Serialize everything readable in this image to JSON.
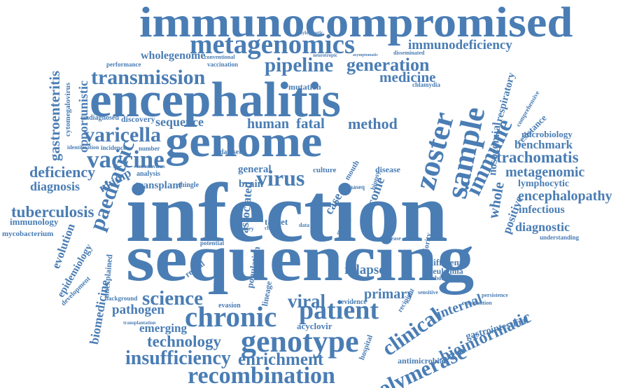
{
  "theme": {
    "word_color": "#4a7db4",
    "background": "#ffffff"
  },
  "words": [
    "immunocompromised",
    "metagenomics",
    "immunodeficiency",
    "wholegenome",
    "conventional",
    "performance",
    "vaccination",
    "neurotropic",
    "asymptomatic",
    "disseminated",
    "phylogenetic",
    "pipeline",
    "generation",
    "transmission",
    "medicine",
    "encephalitis",
    "mutation",
    "chlamydia",
    "gastroenteritis",
    "cytomegalovirus",
    "opportunistic",
    "undiagnosed",
    "discovery",
    "sequence",
    "human",
    "fatal",
    "method",
    "genome",
    "sample",
    "zoster",
    "varicella",
    "vaccine",
    "identification",
    "incidence",
    "number",
    "nosocomial",
    "respiratory",
    "comprehensive",
    "resistance",
    "immune",
    "microbiology",
    "benchmark",
    "trachomatis",
    "deficiency",
    "coronavirus",
    "analysis",
    "dataset",
    "general",
    "culture",
    "disease",
    "virus",
    "brain",
    "mouth",
    "biopsy",
    "rnaseq",
    "metagenomic",
    "lymphocytic",
    "diagnosis",
    "mump",
    "transplant",
    "shingle",
    "encephalopathy",
    "tuberculosis",
    "infectious",
    "immunology",
    "infection",
    "mycobacterium",
    "paediatric",
    "evolution",
    "whole",
    "positive",
    "diagnostic",
    "associated",
    "target",
    "outcome",
    "case",
    "meable",
    "sydney",
    "chain",
    "data",
    "stem",
    "potential",
    "understanding",
    "sequencing",
    "epidemiology",
    "unexplained",
    "reveal",
    "population",
    "relapse",
    "different",
    "leukemia",
    "laboratories",
    "primary",
    "science",
    "background",
    "pathogen",
    "viral",
    "patient",
    "chronic",
    "clinical",
    "internal",
    "emerging",
    "acyclovir",
    "evidence",
    "recipient",
    "bioinformatic",
    "gastrointestinal",
    "technology",
    "genotype",
    "hospital",
    "polymerase",
    "insufficiency",
    "enrichment",
    "biomedicine",
    "recombination",
    "antimicrobial",
    "development",
    "transplantation",
    "sensitive",
    "combination",
    "lineage",
    "evasion",
    "persistence",
    "increase",
    "majority"
  ]
}
